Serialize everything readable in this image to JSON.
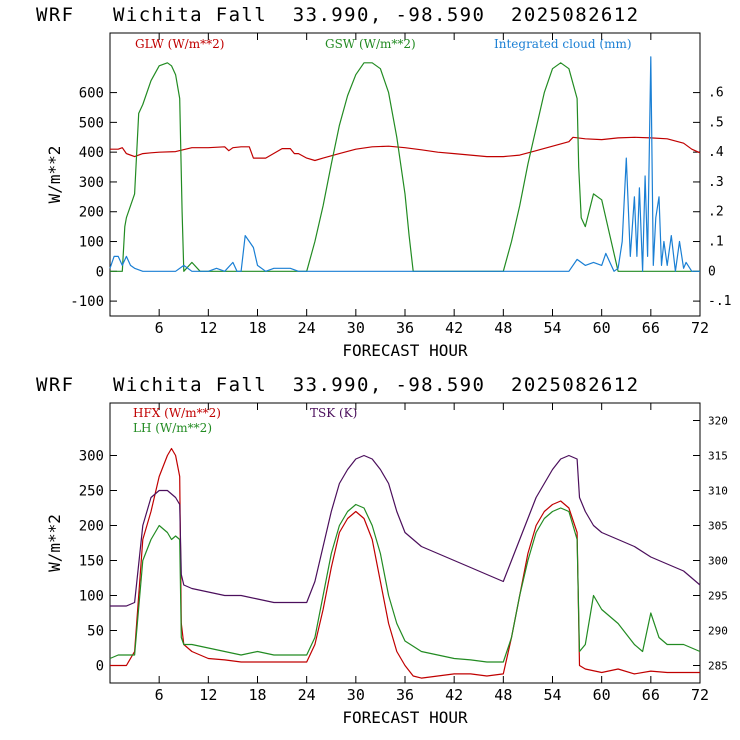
{
  "panels": [
    {
      "title": "WRF   Wichita Fall  33.990, -98.590  2025082612",
      "chart_data": {
        "type": "line",
        "xlabel": "FORECAST HOUR",
        "ylabel": "W/m**2",
        "xlim": [
          0,
          72
        ],
        "xticks": [
          6,
          12,
          18,
          24,
          30,
          36,
          42,
          48,
          54,
          60,
          66,
          72
        ],
        "ylim": [
          -150,
          800
        ],
        "yticks": [
          -100,
          0,
          100,
          200,
          300,
          400,
          500,
          600
        ],
        "ytick_labels": [
          "-100",
          "0",
          "100",
          "200",
          "300",
          "400",
          "500",
          "600"
        ],
        "y2lim": [
          -0.15,
          0.8
        ],
        "y2ticks": [
          -0.1,
          0,
          0.1,
          0.2,
          0.3,
          0.4,
          0.5,
          0.6
        ],
        "y2tick_labels": [
          "-.1",
          "0",
          ".1",
          ".2",
          ".3",
          ".4",
          ".5",
          ".6"
        ],
        "grid": false,
        "legend_position": "top",
        "series": [
          {
            "name": "GLW (W/m**2)",
            "color": "#c00000",
            "axis": "left",
            "x": [
              0,
              1,
              1.5,
              2,
              3,
              4,
              5,
              6,
              8,
              10,
              12,
              14,
              14.5,
              15,
              16,
              17,
              17.5,
              19,
              21,
              22,
              22.5,
              23,
              24,
              25,
              26,
              28,
              30,
              32,
              34,
              36,
              38,
              40,
              42,
              44,
              46,
              48,
              50,
              52,
              54,
              56,
              56.5,
              58,
              60,
              62,
              64,
              66,
              68,
              70,
              71,
              72
            ],
            "y": [
              410,
              410,
              415,
              395,
              385,
              395,
              398,
              400,
              402,
              415,
              415,
              418,
              405,
              415,
              418,
              418,
              380,
              380,
              412,
              412,
              395,
              395,
              380,
              372,
              380,
              395,
              410,
              418,
              420,
              415,
              408,
              400,
              395,
              390,
              385,
              385,
              390,
              405,
              420,
              435,
              450,
              445,
              442,
              448,
              450,
              448,
              445,
              430,
              410,
              398
            ]
          },
          {
            "name": "GSW (W/m**2)",
            "color": "#228b22",
            "axis": "left",
            "x": [
              0,
              1.5,
              1.8,
              2,
              3,
              3.5,
              4,
              5,
              6,
              7,
              7.5,
              8,
              8.5,
              8.8,
              9,
              10,
              11,
              12,
              24,
              25,
              26,
              27,
              28,
              29,
              30,
              31,
              32,
              33,
              34,
              35,
              36,
              36.5,
              37,
              48,
              49,
              50,
              51,
              52,
              53,
              54,
              55,
              56,
              57,
              57.2,
              57.5,
              58,
              59,
              60,
              61,
              62,
              72
            ],
            "y": [
              0,
              0,
              150,
              180,
              260,
              530,
              560,
              640,
              690,
              700,
              690,
              660,
              580,
              200,
              0,
              30,
              0,
              0,
              0,
              100,
              220,
              360,
              490,
              590,
              660,
              700,
              700,
              680,
              600,
              450,
              260,
              120,
              0,
              0,
              100,
              220,
              360,
              480,
              600,
              680,
              700,
              680,
              580,
              350,
              180,
              150,
              260,
              240,
              120,
              0,
              0
            ]
          },
          {
            "name": "Integrated cloud (mm)",
            "color": "#1a7fd4",
            "axis": "right",
            "x": [
              0,
              0.5,
              1,
              1.5,
              2,
              2.5,
              3,
              4,
              5,
              6,
              7,
              8,
              9,
              10,
              12,
              13,
              14,
              15,
              15.5,
              16,
              16.5,
              17,
              17.5,
              18,
              19,
              20,
              21,
              22,
              23,
              24,
              25,
              26,
              28,
              30,
              32,
              34,
              36,
              38,
              40,
              42,
              44,
              46,
              48,
              50,
              52,
              54,
              56,
              57,
              58,
              59,
              60,
              60.5,
              61,
              61.5,
              62,
              62.5,
              63,
              63.5,
              64,
              64.3,
              64.6,
              65,
              65.3,
              65.6,
              66,
              66.3,
              66.6,
              67,
              67.3,
              67.6,
              68,
              68.5,
              69,
              69.5,
              70,
              70.3,
              71,
              72
            ],
            "y": [
              0.01,
              0.05,
              0.05,
              0.02,
              0.05,
              0.02,
              0.01,
              0,
              0,
              0,
              0,
              0,
              0.02,
              0,
              0,
              0.01,
              0,
              0.03,
              0,
              0,
              0.12,
              0.1,
              0.08,
              0.02,
              0,
              0.01,
              0.01,
              0.01,
              0,
              0,
              0,
              0,
              0,
              0,
              0,
              0,
              0,
              0,
              0,
              0,
              0,
              0,
              0,
              0,
              0,
              0,
              0,
              0.04,
              0.02,
              0.03,
              0.02,
              0.06,
              0.03,
              0,
              0.01,
              0.1,
              0.38,
              0.05,
              0.25,
              0.05,
              0.28,
              0,
              0.32,
              0.05,
              0.72,
              0.02,
              0.18,
              0.25,
              0.02,
              0.1,
              0.02,
              0.12,
              0,
              0.1,
              0.01,
              0.03,
              0,
              0
            ]
          }
        ]
      }
    },
    {
      "title": "WRF   Wichita Fall  33.990, -98.590  2025082612",
      "chart_data": {
        "type": "line",
        "xlabel": "FORECAST HOUR",
        "ylabel": "W/m**2",
        "xlim": [
          0,
          72
        ],
        "xticks": [
          6,
          12,
          18,
          24,
          30,
          36,
          42,
          48,
          54,
          60,
          66,
          72
        ],
        "ylim": [
          -25,
          375
        ],
        "yticks": [
          0,
          50,
          100,
          150,
          200,
          250,
          300
        ],
        "ytick_labels": [
          "0",
          "50",
          "100",
          "150",
          "200",
          "250",
          "300"
        ],
        "y2lim": [
          282.5,
          322.5
        ],
        "y2ticks": [
          285,
          290,
          295,
          300,
          305,
          310,
          315,
          320
        ],
        "y2tick_labels": [
          "285",
          "290",
          "295",
          "300",
          "305",
          "310",
          "315",
          "320"
        ],
        "grid": false,
        "legend_position": "top-left",
        "series": [
          {
            "name": "HFX (W/m**2)",
            "color": "#c00000",
            "axis": "left",
            "x": [
              0,
              1,
              2,
              3,
              4,
              5,
              6,
              7,
              7.5,
              8,
              8.5,
              8.7,
              9,
              10,
              12,
              14,
              16,
              18,
              20,
              22,
              24,
              25,
              26,
              27,
              28,
              29,
              30,
              31,
              32,
              33,
              34,
              35,
              36,
              37,
              38,
              40,
              42,
              44,
              46,
              48,
              49,
              50,
              51,
              52,
              53,
              54,
              55,
              56,
              57,
              57.3,
              58,
              60,
              62,
              64,
              66,
              68,
              70,
              72
            ],
            "y": [
              0,
              0,
              0,
              20,
              180,
              220,
              270,
              300,
              310,
              300,
              270,
              60,
              30,
              20,
              10,
              8,
              5,
              5,
              5,
              5,
              5,
              30,
              80,
              140,
              190,
              210,
              220,
              210,
              180,
              120,
              60,
              20,
              0,
              -15,
              -18,
              -15,
              -12,
              -12,
              -15,
              -12,
              40,
              100,
              160,
              200,
              220,
              230,
              235,
              225,
              190,
              0,
              -5,
              -10,
              -5,
              -12,
              -8,
              -10,
              -10,
              -10
            ]
          },
          {
            "name": "LH  (W/m**2)",
            "color": "#228b22",
            "axis": "left",
            "x": [
              0,
              1,
              2,
              3,
              4,
              5,
              6,
              7,
              7.5,
              8,
              8.5,
              8.7,
              9,
              10,
              12,
              14,
              16,
              18,
              20,
              22,
              24,
              25,
              26,
              27,
              28,
              29,
              30,
              31,
              32,
              33,
              34,
              35,
              36,
              38,
              40,
              42,
              44,
              46,
              48,
              49,
              50,
              51,
              52,
              53,
              54,
              55,
              56,
              57,
              57.3,
              58,
              59,
              60,
              62,
              64,
              65,
              66,
              67,
              68,
              70,
              72
            ],
            "y": [
              10,
              15,
              15,
              15,
              150,
              180,
              200,
              190,
              180,
              185,
              180,
              40,
              30,
              30,
              25,
              20,
              15,
              20,
              15,
              15,
              15,
              40,
              100,
              160,
              200,
              220,
              230,
              225,
              200,
              160,
              100,
              60,
              35,
              20,
              15,
              10,
              8,
              5,
              5,
              40,
              100,
              150,
              190,
              210,
              220,
              225,
              220,
              180,
              20,
              30,
              100,
              80,
              60,
              30,
              20,
              75,
              40,
              30,
              30,
              20
            ]
          },
          {
            "name": "TSK (K)",
            "color": "#4b0f5c",
            "axis": "right",
            "x": [
              0,
              1,
              2,
              3,
              4,
              5,
              6,
              7,
              7.5,
              8,
              8.5,
              8.7,
              9,
              10,
              12,
              14,
              16,
              18,
              20,
              22,
              24,
              25,
              26,
              27,
              28,
              29,
              30,
              31,
              32,
              33,
              34,
              35,
              36,
              38,
              40,
              42,
              44,
              46,
              48,
              49,
              50,
              51,
              52,
              53,
              54,
              55,
              56,
              57,
              57.3,
              58,
              59,
              60,
              62,
              64,
              66,
              68,
              70,
              72
            ],
            "y": [
              293.5,
              293.5,
              293.5,
              294,
              305,
              309,
              310,
              310,
              309.5,
              309,
              308,
              298,
              296.5,
              296,
              295.5,
              295,
              295,
              294.5,
              294,
              294,
              294,
              297,
              302,
              307,
              311,
              313,
              314.5,
              315,
              314.5,
              313,
              311,
              307,
              304,
              302,
              301,
              300,
              299,
              298,
              297,
              300,
              303,
              306,
              309,
              311,
              313,
              314.5,
              315,
              314.5,
              309,
              307,
              305,
              304,
              303,
              302,
              300.5,
              299.5,
              298.5,
              296.5
            ]
          }
        ]
      }
    }
  ]
}
